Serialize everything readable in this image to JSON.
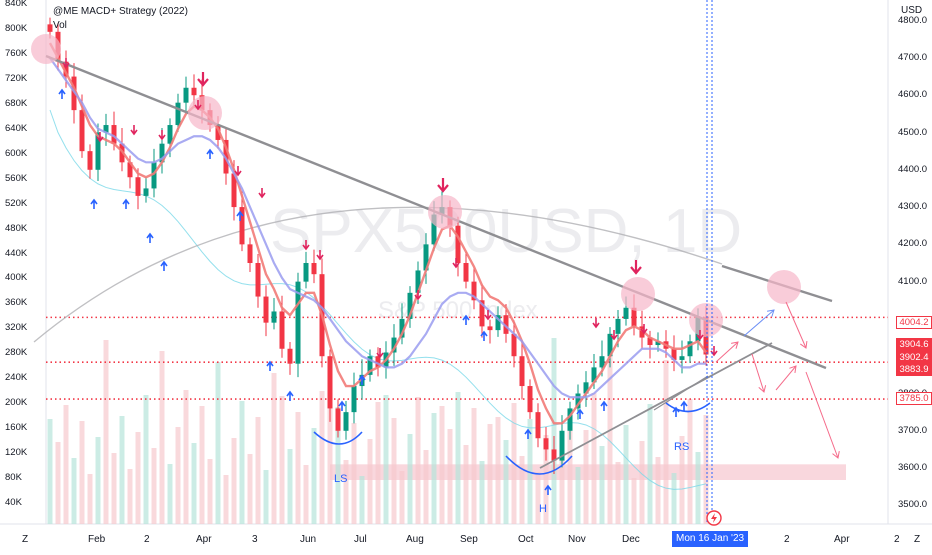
{
  "indicator": {
    "title": "@ME MACD+ Strategy (2022)",
    "vol_label": "Vol"
  },
  "watermark": {
    "symbol": "SPX500USD, 1D",
    "name": "S&P 500 Index"
  },
  "currency": "USD",
  "left_axis_labels": [
    "840K",
    "800K",
    "760K",
    "720K",
    "680K",
    "640K",
    "600K",
    "560K",
    "520K",
    "480K",
    "440K",
    "400K",
    "360K",
    "320K",
    "280K",
    "240K",
    "200K",
    "160K",
    "120K",
    "80K",
    "40K"
  ],
  "x_axis_labels": [
    "Feb",
    "2",
    "Apr",
    "3",
    "Jun",
    "Jul",
    "Aug",
    "Sep",
    "Oct",
    "Nov",
    "Dec",
    "2",
    "Apr",
    "2"
  ],
  "cursor_date": "Mon 16 Jan '23",
  "z_left": "Z",
  "z_right": "Z",
  "pattern_labels": {
    "ls": "LS",
    "h": "H",
    "rs": "RS"
  },
  "price_tags": [
    {
      "text": "4004.2",
      "color": "#f23645",
      "kind": "outline"
    },
    {
      "text": "3904.6",
      "color": "#f23645",
      "kind": "fill"
    },
    {
      "text": "3902.4",
      "color": "#f23645",
      "kind": "fill"
    },
    {
      "text": "3883.9",
      "color": "#f23645",
      "kind": "fill"
    },
    {
      "text": "3785.0",
      "color": "#f23645",
      "kind": "outline"
    }
  ],
  "chart_data": {
    "type": "candlestick",
    "y_axis": {
      "min": 3450,
      "max": 4850,
      "ticks": [
        4800,
        4700,
        4600,
        4500,
        4400,
        4300,
        4200,
        4100,
        3800,
        3700,
        3600,
        3500
      ]
    },
    "support_resistance": [
      4004.2,
      3883.9,
      3785.0
    ],
    "demand_zone": [
      3568,
      3610
    ],
    "ohlc_close": [
      4770,
      4690,
      4650,
      4560,
      4450,
      4400,
      4500,
      4520,
      4470,
      4420,
      4380,
      4330,
      4350,
      4420,
      4470,
      4520,
      4580,
      4620,
      4600,
      4560,
      4520,
      4480,
      4390,
      4300,
      4200,
      4150,
      4060,
      3990,
      4020,
      3920,
      3880,
      4100,
      4150,
      4120,
      3900,
      3760,
      3700,
      3750,
      3820,
      3850,
      3900,
      3870,
      3910,
      3950,
      4000,
      4070,
      4130,
      4200,
      4280,
      4300,
      4250,
      4150,
      4100,
      4050,
      3980,
      3970,
      4010,
      3960,
      3900,
      3820,
      3750,
      3680,
      3650,
      3620,
      3700,
      3760,
      3800,
      3830,
      3870,
      3900,
      3960,
      4000,
      4030,
      3980,
      3950,
      3930,
      3940,
      3920,
      3890,
      3900,
      3940,
      4004.2,
      3904.6
    ],
    "ma_red": [
      4740,
      4700,
      4660,
      4620,
      4570,
      4520,
      4490,
      4480,
      4470,
      4450,
      4420,
      4390,
      4380,
      4390,
      4420,
      4460,
      4510,
      4550,
      4570,
      4560,
      4540,
      4510,
      4460,
      4400,
      4330,
      4260,
      4190,
      4120,
      4080,
      4030,
      4010,
      4040,
      4070,
      4070,
      4010,
      3930,
      3860,
      3820,
      3820,
      3840,
      3860,
      3870,
      3890,
      3920,
      3960,
      4010,
      4070,
      4130,
      4190,
      4240,
      4250,
      4220,
      4180,
      4140,
      4090,
      4060,
      4050,
      4030,
      3990,
      3940,
      3880,
      3810,
      3760,
      3720,
      3720,
      3740,
      3770,
      3800,
      3830,
      3860,
      3900,
      3940,
      3970,
      3980,
      3970,
      3950,
      3940,
      3930,
      3920,
      3920,
      3930,
      3940,
      3910
    ],
    "ma_blue": [
      4700,
      4670,
      4640,
      4610,
      4580,
      4540,
      4510,
      4500,
      4490,
      4470,
      4450,
      4430,
      4420,
      4420,
      4430,
      4450,
      4470,
      4480,
      4490,
      4490,
      4480,
      4460,
      4430,
      4390,
      4350,
      4300,
      4250,
      4200,
      4150,
      4110,
      4080,
      4070,
      4060,
      4050,
      4030,
      4000,
      3970,
      3940,
      3920,
      3900,
      3890,
      3880,
      3870,
      3870,
      3880,
      3900,
      3930,
      3960,
      4000,
      4040,
      4060,
      4070,
      4070,
      4060,
      4040,
      4020,
      4000,
      3980,
      3960,
      3940,
      3910,
      3880,
      3850,
      3820,
      3800,
      3790,
      3790,
      3790,
      3800,
      3820,
      3840,
      3860,
      3880,
      3900,
      3920,
      3920,
      3920,
      3910,
      3890,
      3870,
      3870,
      3880,
      3880
    ],
    "trendlines": [
      {
        "name": "descending-resistance",
        "from": [
          "Jan",
          4760
        ],
        "to": [
          "Mar '23",
          3880
        ]
      },
      {
        "name": "rising-neckline",
        "from": [
          "Oct",
          3590
        ],
        "to": [
          "Feb '23",
          3975
        ]
      },
      {
        "name": "upper-channel",
        "from": [
          "Jan '23",
          4140
        ],
        "to": [
          "Mar '23",
          4070
        ]
      }
    ]
  },
  "colors": {
    "up": "#089981",
    "down": "#f23645",
    "ma_red": "#f27b78",
    "ma_blue": "#9a9cf0",
    "trend": "#8f8f93",
    "arrow_down": "#e0245e",
    "arrow_up": "#2962ff",
    "zone": "#f7c9d1",
    "circle": "#f7b7c9",
    "volume": "#f6c9cd",
    "volume_up": "#b7e4da",
    "cursor": "#2962ff"
  }
}
